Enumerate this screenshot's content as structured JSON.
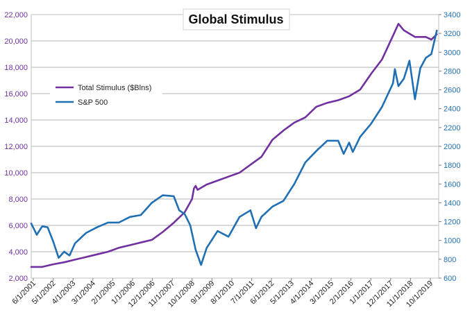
{
  "chart_data": {
    "type": "line",
    "title": "Global Stimulus",
    "x_tick_labels": [
      "6/1/2001",
      "5/1/2002",
      "4/1/2003",
      "3/1/2004",
      "2/1/2005",
      "1/1/2006",
      "12/1/2006",
      "11/1/2007",
      "10/1/2008",
      "9/1/2009",
      "8/1/2010",
      "7/1/2011",
      "6/1/2012",
      "5/1/2013",
      "4/1/2014",
      "3/1/2015",
      "2/1/2016",
      "1/1/2017",
      "12/1/2017",
      "11/1/2018",
      "10/1/2019"
    ],
    "x_range": [
      "2001-06-01",
      "2020-01-01"
    ],
    "y_left": {
      "range": [
        2000,
        22000
      ],
      "ticks": [
        "2,000",
        "4,000",
        "6,000",
        "8,000",
        "10,000",
        "12,000",
        "14,000",
        "16,000",
        "18,000",
        "20,000",
        "22,000"
      ]
    },
    "y_right": {
      "range": [
        600,
        3400
      ],
      "ticks": [
        "600",
        "800",
        "1000",
        "1200",
        "1400",
        "1600",
        "1800",
        "2000",
        "2200",
        "2400",
        "2600",
        "2800",
        "3000",
        "3200",
        "3400"
      ]
    },
    "grid": "horizontal",
    "legend_position": "top-left",
    "series": [
      {
        "name": "Total Stimulus ($Blns)",
        "axis": "left",
        "color": "#7030A0",
        "points": [
          [
            "2001-06-01",
            2850
          ],
          [
            "2001-12-01",
            2850
          ],
          [
            "2002-06-01",
            3050
          ],
          [
            "2002-12-01",
            3200
          ],
          [
            "2003-06-01",
            3400
          ],
          [
            "2003-12-01",
            3600
          ],
          [
            "2004-06-01",
            3800
          ],
          [
            "2004-12-01",
            4000
          ],
          [
            "2005-06-01",
            4300
          ],
          [
            "2005-12-01",
            4500
          ],
          [
            "2006-06-01",
            4700
          ],
          [
            "2006-12-01",
            4900
          ],
          [
            "2007-06-01",
            5500
          ],
          [
            "2007-12-01",
            6200
          ],
          [
            "2008-06-01",
            7000
          ],
          [
            "2008-10-01",
            8000
          ],
          [
            "2008-11-01",
            8800
          ],
          [
            "2008-12-01",
            9000
          ],
          [
            "2009-01-01",
            8700
          ],
          [
            "2009-06-01",
            9100
          ],
          [
            "2009-12-01",
            9400
          ],
          [
            "2010-06-01",
            9700
          ],
          [
            "2010-12-01",
            10000
          ],
          [
            "2011-06-01",
            10600
          ],
          [
            "2011-12-01",
            11200
          ],
          [
            "2012-06-01",
            12500
          ],
          [
            "2012-12-01",
            13200
          ],
          [
            "2013-06-01",
            13800
          ],
          [
            "2013-12-01",
            14200
          ],
          [
            "2014-06-01",
            15000
          ],
          [
            "2014-12-01",
            15300
          ],
          [
            "2015-06-01",
            15500
          ],
          [
            "2015-12-01",
            15800
          ],
          [
            "2016-06-01",
            16300
          ],
          [
            "2016-12-01",
            17500
          ],
          [
            "2017-06-01",
            18600
          ],
          [
            "2017-12-01",
            20400
          ],
          [
            "2018-03-01",
            21300
          ],
          [
            "2018-06-01",
            20800
          ],
          [
            "2018-12-01",
            20300
          ],
          [
            "2019-06-01",
            20300
          ],
          [
            "2019-09-01",
            20100
          ],
          [
            "2019-12-01",
            20500
          ]
        ]
      },
      {
        "name": "S&P 500",
        "axis": "right",
        "color": "#1F6FB5",
        "points": [
          [
            "2001-06-01",
            1180
          ],
          [
            "2001-09-01",
            1060
          ],
          [
            "2001-12-01",
            1150
          ],
          [
            "2002-03-01",
            1140
          ],
          [
            "2002-06-01",
            990
          ],
          [
            "2002-09-01",
            815
          ],
          [
            "2002-12-01",
            880
          ],
          [
            "2003-03-01",
            840
          ],
          [
            "2003-06-01",
            970
          ],
          [
            "2003-12-01",
            1080
          ],
          [
            "2004-06-01",
            1140
          ],
          [
            "2004-12-01",
            1190
          ],
          [
            "2005-06-01",
            1190
          ],
          [
            "2005-12-01",
            1250
          ],
          [
            "2006-06-01",
            1270
          ],
          [
            "2006-12-01",
            1400
          ],
          [
            "2007-06-01",
            1480
          ],
          [
            "2007-12-01",
            1470
          ],
          [
            "2008-03-01",
            1320
          ],
          [
            "2008-06-01",
            1280
          ],
          [
            "2008-09-01",
            1160
          ],
          [
            "2008-12-01",
            900
          ],
          [
            "2009-03-01",
            740
          ],
          [
            "2009-06-01",
            920
          ],
          [
            "2009-12-01",
            1100
          ],
          [
            "2010-06-01",
            1040
          ],
          [
            "2010-12-01",
            1250
          ],
          [
            "2011-06-01",
            1320
          ],
          [
            "2011-09-01",
            1130
          ],
          [
            "2011-12-01",
            1250
          ],
          [
            "2012-06-01",
            1360
          ],
          [
            "2012-12-01",
            1420
          ],
          [
            "2013-06-01",
            1600
          ],
          [
            "2013-12-01",
            1830
          ],
          [
            "2014-06-01",
            1950
          ],
          [
            "2014-12-01",
            2060
          ],
          [
            "2015-06-01",
            2060
          ],
          [
            "2015-09-01",
            1920
          ],
          [
            "2015-12-01",
            2040
          ],
          [
            "2016-02-01",
            1940
          ],
          [
            "2016-06-01",
            2100
          ],
          [
            "2016-12-01",
            2240
          ],
          [
            "2017-06-01",
            2420
          ],
          [
            "2017-12-01",
            2670
          ],
          [
            "2018-01-01",
            2820
          ],
          [
            "2018-03-01",
            2640
          ],
          [
            "2018-06-01",
            2720
          ],
          [
            "2018-09-01",
            2910
          ],
          [
            "2018-12-01",
            2500
          ],
          [
            "2019-03-01",
            2830
          ],
          [
            "2019-06-01",
            2940
          ],
          [
            "2019-09-01",
            2980
          ],
          [
            "2019-12-01",
            3230
          ]
        ]
      }
    ]
  }
}
